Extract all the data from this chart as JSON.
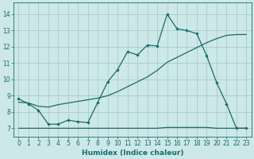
{
  "bg_color": "#cce8e8",
  "grid_color": "#aacccc",
  "line_color": "#1a6b6b",
  "xlabel": "Humidex (Indice chaleur)",
  "xlim": [
    -0.5,
    23.5
  ],
  "ylim": [
    6.5,
    14.7
  ],
  "yticks": [
    7,
    8,
    9,
    10,
    11,
    12,
    13,
    14
  ],
  "xticks": [
    0,
    1,
    2,
    3,
    4,
    5,
    6,
    7,
    8,
    9,
    10,
    11,
    12,
    13,
    14,
    15,
    16,
    17,
    18,
    19,
    20,
    21,
    22,
    23
  ],
  "line1_x": [
    0,
    1,
    2,
    3,
    4,
    5,
    6,
    7,
    8,
    9,
    10,
    11,
    12,
    13,
    14,
    15,
    16,
    17,
    18,
    19,
    20,
    21,
    22,
    23
  ],
  "line1_y": [
    8.8,
    8.5,
    8.1,
    7.25,
    7.25,
    7.5,
    7.4,
    7.35,
    8.6,
    9.85,
    10.6,
    11.7,
    11.5,
    12.1,
    12.05,
    14.0,
    13.1,
    13.0,
    12.8,
    11.45,
    9.8,
    8.5,
    7.0,
    7.0
  ],
  "line2_x": [
    0,
    1,
    2,
    3,
    4,
    5,
    6,
    7,
    8,
    9,
    10,
    11,
    12,
    13,
    14,
    15,
    16,
    17,
    18,
    19,
    20,
    21,
    22,
    23
  ],
  "line2_y": [
    8.6,
    8.55,
    8.35,
    8.3,
    8.45,
    8.55,
    8.65,
    8.75,
    8.85,
    9.0,
    9.25,
    9.55,
    9.85,
    10.15,
    10.55,
    11.05,
    11.35,
    11.65,
    11.95,
    12.25,
    12.5,
    12.7,
    12.75,
    12.75
  ],
  "line3_x": [
    0,
    1,
    2,
    3,
    4,
    5,
    6,
    7,
    8,
    9,
    10,
    11,
    12,
    13,
    14,
    15,
    16,
    17,
    18,
    19,
    20,
    21,
    22,
    23
  ],
  "line3_y": [
    7.0,
    7.0,
    7.0,
    7.0,
    7.0,
    7.0,
    7.0,
    7.0,
    7.0,
    7.0,
    7.0,
    7.0,
    7.0,
    7.0,
    7.0,
    7.05,
    7.05,
    7.05,
    7.05,
    7.05,
    7.0,
    7.0,
    7.0,
    7.0
  ]
}
